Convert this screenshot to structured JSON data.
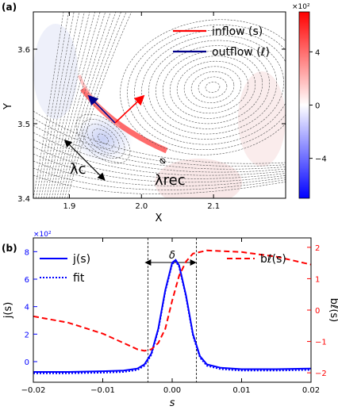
{
  "chart_data": [
    {
      "type": "heatmap",
      "panel_label": "(a)",
      "xlabel": "X",
      "ylabel": "Y",
      "xlim": [
        1.85,
        2.2
      ],
      "ylim": [
        3.4,
        3.65
      ],
      "x_ticks": [
        "1.9",
        "2.0",
        "2.1"
      ],
      "y_ticks": [
        "3.4",
        "3.5",
        "3.6"
      ],
      "colorbar": {
        "multiplier": "×10²",
        "range": [
          -7,
          7
        ],
        "ticks": [
          "4",
          "0",
          "−4"
        ],
        "colors": [
          "#0000ff",
          "#ffffff",
          "#ff0000"
        ]
      },
      "legend": [
        {
          "name": "inflow (s)",
          "color": "#ff0000"
        },
        {
          "name": "outflow (ℓ)",
          "color": "#00008b"
        }
      ],
      "annotations": {
        "lambda_c": "λc",
        "lambda_rec": "λrec"
      }
    },
    {
      "type": "line",
      "panel_label": "(b)",
      "xlabel": "s",
      "ylabel_left": "j(s)",
      "ylabel_right": "bℓ(s)",
      "left_multiplier": "×10²",
      "xlim": [
        -0.02,
        0.02
      ],
      "ylim_left": [
        -1.5,
        9
      ],
      "ylim_right": [
        -2.3,
        2.3
      ],
      "x_ticks": [
        "−0.02",
        "−0.01",
        "0.00",
        "0.01",
        "0.02"
      ],
      "x_tick_values": [
        -0.02,
        -0.01,
        0.0,
        0.01,
        0.02
      ],
      "left_ticks": [
        "0",
        "2",
        "4",
        "6",
        "8"
      ],
      "left_tick_values": [
        0,
        2,
        4,
        6,
        8
      ],
      "right_ticks": [
        "−2",
        "−1",
        "0",
        "1",
        "2"
      ],
      "right_tick_values": [
        -2,
        -1,
        0,
        1,
        2
      ],
      "delta_label": "δ",
      "delta_range": [
        -0.0035,
        0.0035
      ],
      "series": [
        {
          "name": "j(s)",
          "axis": "left",
          "color": "#0000ff",
          "style": "solid",
          "x": [
            -0.02,
            -0.015,
            -0.01,
            -0.007,
            -0.005,
            -0.004,
            -0.003,
            -0.002,
            -0.001,
            0.0,
            0.0005,
            0.001,
            0.002,
            0.003,
            0.004,
            0.005,
            0.007,
            0.01,
            0.015,
            0.02
          ],
          "y": [
            -0.75,
            -0.75,
            -0.7,
            -0.65,
            -0.5,
            -0.2,
            0.6,
            2.4,
            5.2,
            7.2,
            7.4,
            7.0,
            4.8,
            2.0,
            0.4,
            -0.2,
            -0.45,
            -0.55,
            -0.55,
            -0.5
          ]
        },
        {
          "name": "fit",
          "axis": "left",
          "color": "#0000ff",
          "style": "dotted",
          "x": [
            -0.02,
            -0.015,
            -0.01,
            -0.007,
            -0.005,
            -0.004,
            -0.003,
            -0.002,
            -0.001,
            0.0,
            0.0005,
            0.001,
            0.002,
            0.003,
            0.004,
            0.005,
            0.007,
            0.01,
            0.015,
            0.02
          ],
          "y": [
            -0.85,
            -0.85,
            -0.8,
            -0.75,
            -0.6,
            -0.3,
            0.5,
            2.3,
            5.1,
            7.1,
            7.3,
            6.9,
            4.7,
            1.9,
            0.3,
            -0.3,
            -0.55,
            -0.65,
            -0.65,
            -0.6
          ]
        },
        {
          "name": "bℓ(s)",
          "axis": "right",
          "color": "#ff0000",
          "style": "dashed",
          "x": [
            -0.02,
            -0.015,
            -0.01,
            -0.007,
            -0.005,
            -0.004,
            -0.003,
            -0.002,
            -0.001,
            0.0,
            0.001,
            0.002,
            0.003,
            0.005,
            0.01,
            0.015,
            0.02
          ],
          "y": [
            -0.2,
            -0.4,
            -0.75,
            -1.05,
            -1.25,
            -1.3,
            -1.25,
            -1.05,
            -0.6,
            0.3,
            1.1,
            1.55,
            1.8,
            1.9,
            1.85,
            1.7,
            1.45
          ]
        }
      ]
    }
  ]
}
